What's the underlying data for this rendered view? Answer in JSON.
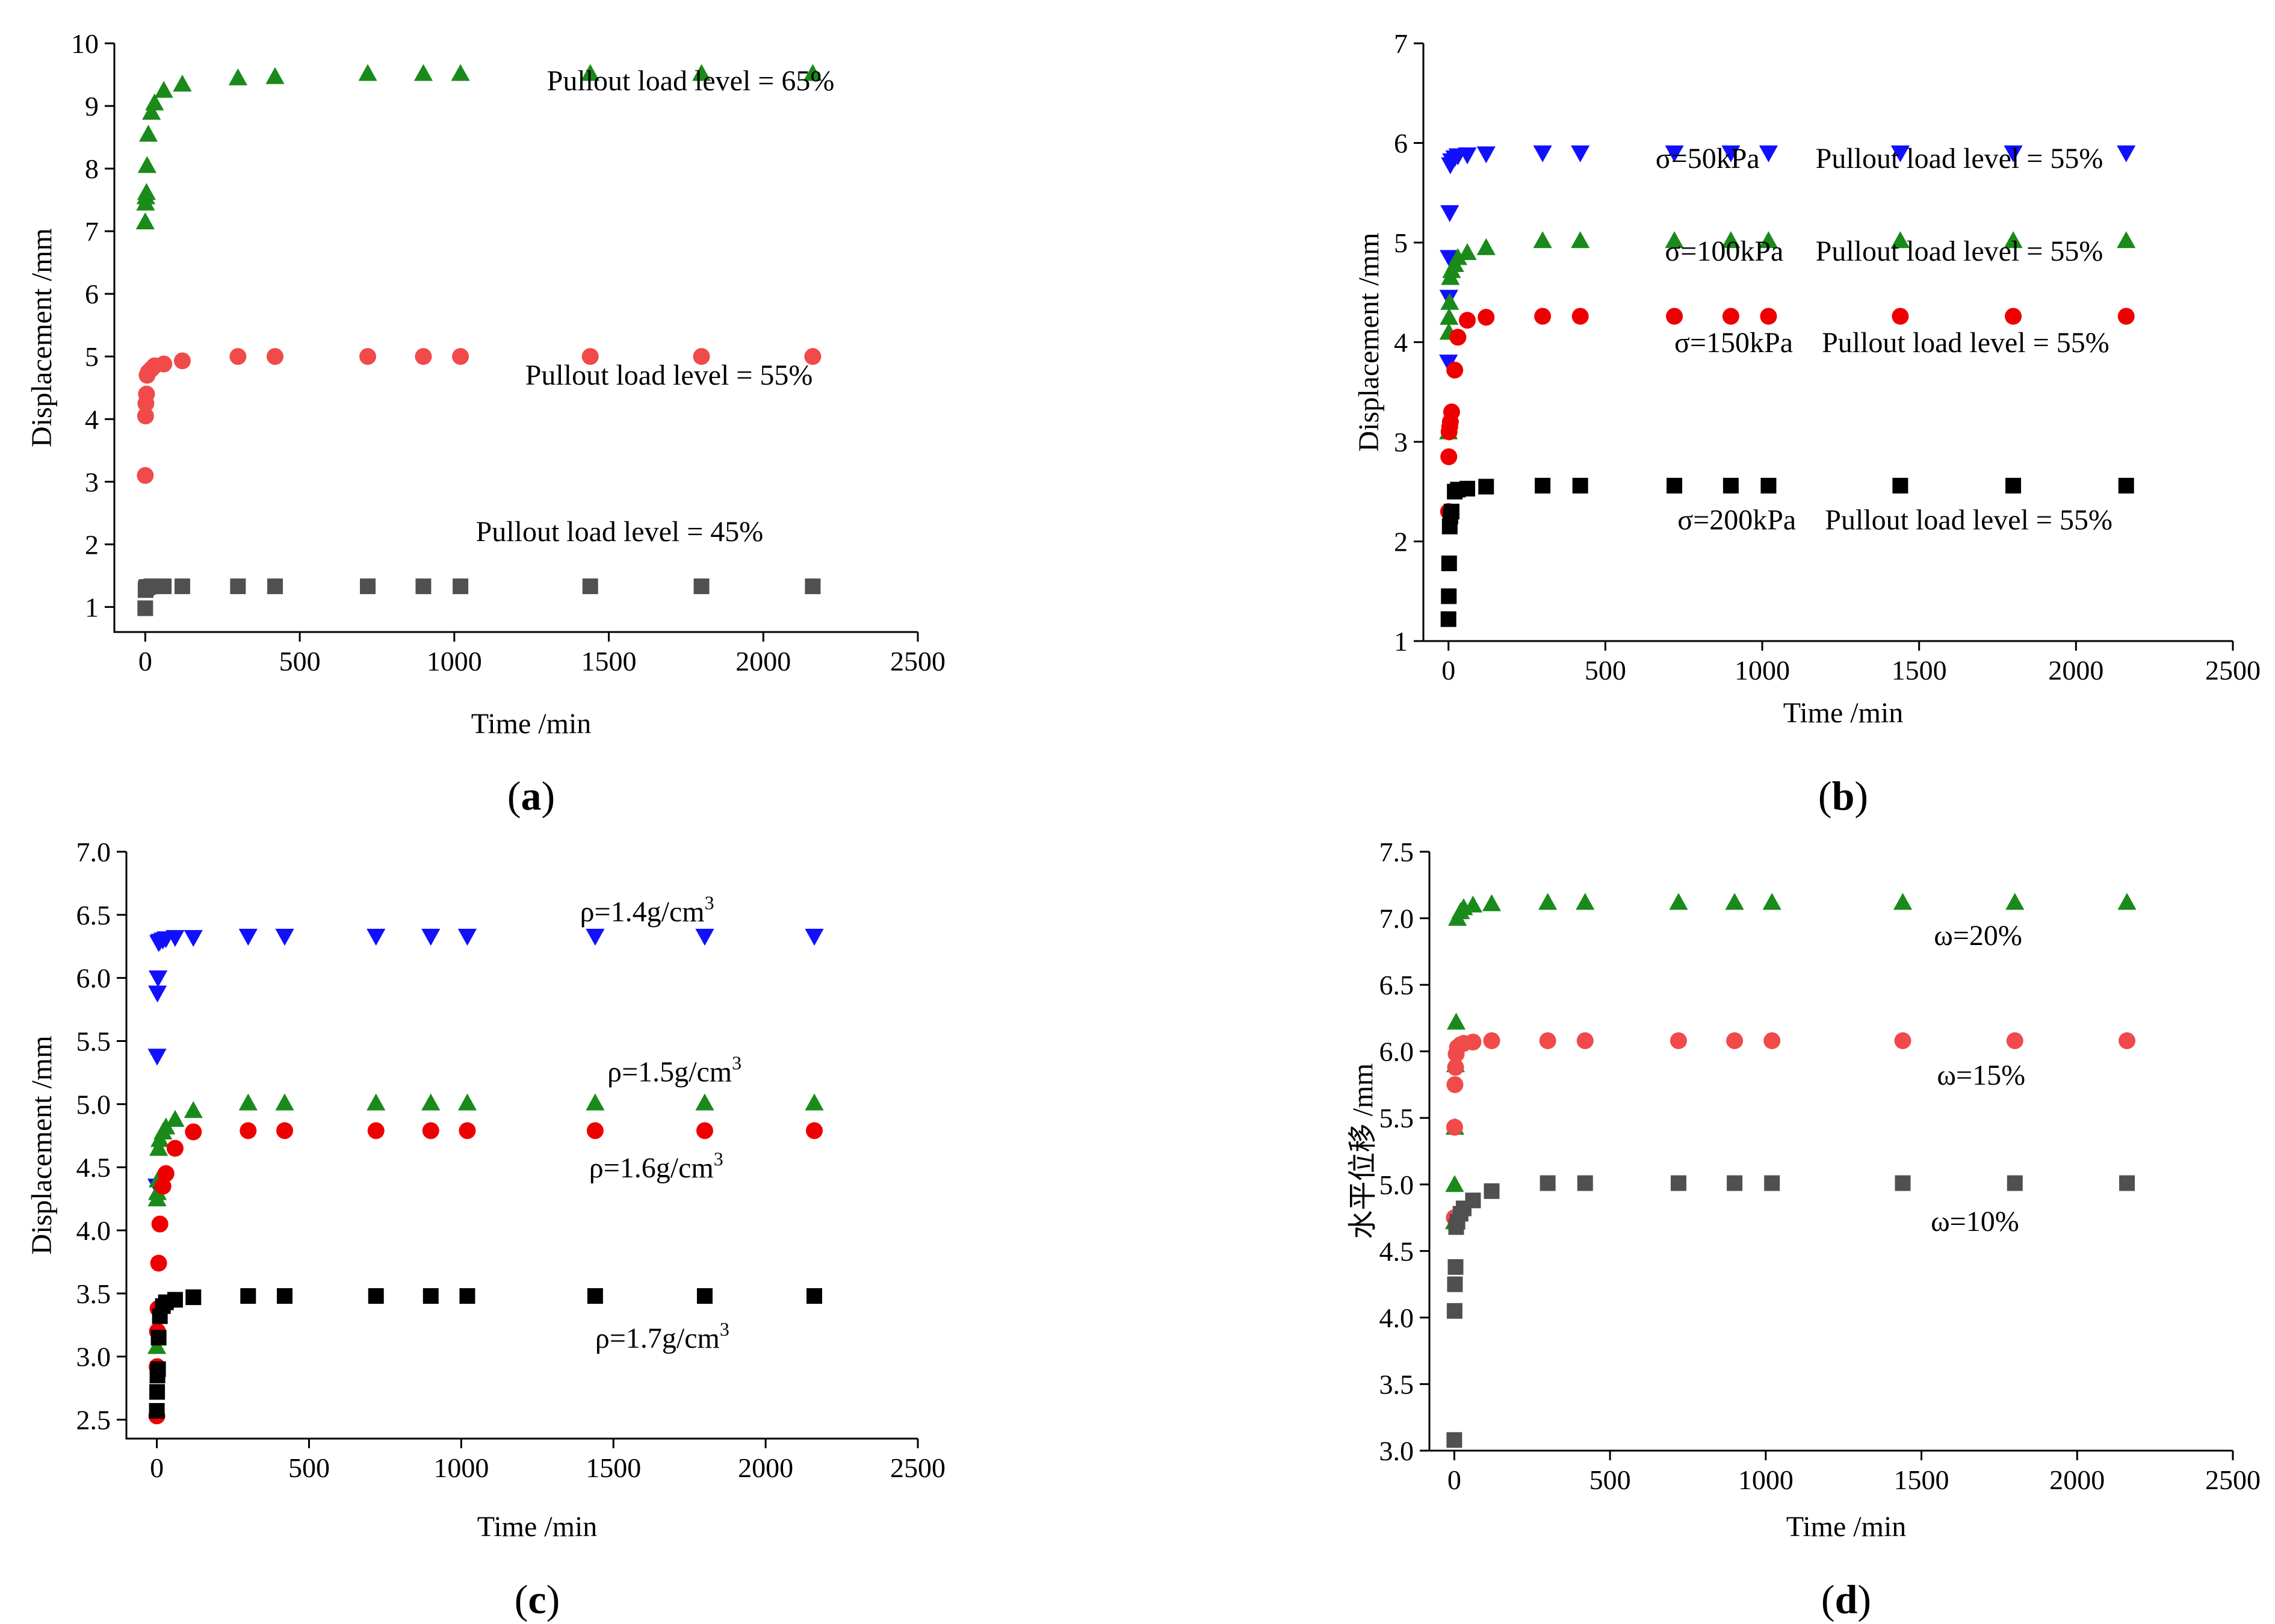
{
  "chart_data": [
    {
      "type": "scatter",
      "panel_label": "(a)",
      "xlabel": "Time /min",
      "ylabel": "Displacement /mm",
      "xlim": [
        -100,
        2500
      ],
      "ylim": [
        0.6,
        10
      ],
      "xticks": [
        0,
        500,
        1000,
        1500,
        2000,
        2500
      ],
      "yticks": [
        1,
        2,
        3,
        4,
        5,
        6,
        7,
        8,
        9,
        10
      ],
      "series": [
        {
          "name": "Pullout load level = 65%",
          "marker": "triangle-up",
          "color": "#1a8a1a",
          "x": [
            0,
            1,
            2,
            4,
            6,
            10,
            20,
            30,
            60,
            120,
            300,
            420,
            720,
            900,
            1020,
            1440,
            1800,
            2160
          ],
          "y": [
            7.15,
            7.45,
            7.55,
            7.62,
            8.05,
            8.55,
            8.9,
            9.05,
            9.25,
            9.35,
            9.45,
            9.47,
            9.52,
            9.52,
            9.52,
            9.52,
            9.52,
            9.52
          ]
        },
        {
          "name": "Pullout load level = 55%",
          "marker": "circle",
          "color": "#f04a4a",
          "x": [
            0,
            1,
            2,
            4,
            6,
            10,
            20,
            30,
            60,
            120,
            300,
            420,
            720,
            900,
            1020,
            1440,
            1800,
            2160
          ],
          "y": [
            3.1,
            4.05,
            4.25,
            4.4,
            4.7,
            4.75,
            4.8,
            4.85,
            4.88,
            4.93,
            5.0,
            5.0,
            5.0,
            5.0,
            5.0,
            5.0,
            5.0,
            5.0
          ]
        },
        {
          "name": "Pullout load level = 45%",
          "marker": "square",
          "color": "#505050",
          "x": [
            0,
            1,
            2,
            4,
            6,
            10,
            20,
            30,
            60,
            120,
            300,
            420,
            720,
            900,
            1020,
            1440,
            1800,
            2160
          ],
          "y": [
            0.98,
            1.27,
            1.3,
            1.31,
            1.32,
            1.32,
            1.33,
            1.33,
            1.33,
            1.33,
            1.33,
            1.33,
            1.33,
            1.33,
            1.33,
            1.33,
            1.33,
            1.33
          ]
        }
      ],
      "annotations": [
        {
          "text": "Pullout load level = 65%",
          "x": 2230,
          "y": 9.25,
          "anchor": "end"
        },
        {
          "text": "Pullout load level = 55%",
          "x": 2160,
          "y": 4.55,
          "anchor": "end"
        },
        {
          "text": "Pullout load level = 45%",
          "x": 2000,
          "y": 2.05,
          "anchor": "end"
        }
      ]
    },
    {
      "type": "scatter",
      "panel_label": "(b)",
      "xlabel": "Time /min",
      "ylabel": "Displacement /mm",
      "xlim": [
        -80,
        2500
      ],
      "ylim": [
        1,
        7
      ],
      "xticks": [
        0,
        500,
        1000,
        1500,
        2000,
        2500
      ],
      "yticks": [
        1,
        2,
        3,
        4,
        5,
        6,
        7
      ],
      "series": [
        {
          "name": "σ=50kPa",
          "marker": "triangle-down",
          "color": "#1010ff",
          "x": [
            0,
            1,
            2,
            4,
            6,
            10,
            20,
            30,
            60,
            120,
            300,
            420,
            720,
            900,
            1020,
            1440,
            1800,
            2160
          ],
          "y": [
            3.8,
            4.45,
            4.85,
            5.3,
            5.78,
            5.82,
            5.85,
            5.87,
            5.88,
            5.89,
            5.9,
            5.9,
            5.9,
            5.9,
            5.9,
            5.9,
            5.9,
            5.9
          ]
        },
        {
          "name": "σ=100kPa",
          "marker": "triangle-up",
          "color": "#1a8a1a",
          "x": [
            0,
            1,
            2,
            4,
            6,
            10,
            20,
            30,
            60,
            120,
            300,
            420,
            720,
            900,
            1020,
            1440,
            1800,
            2160
          ],
          "y": [
            3.1,
            4.1,
            4.25,
            4.4,
            4.65,
            4.72,
            4.78,
            4.85,
            4.9,
            4.95,
            5.02,
            5.02,
            5.02,
            5.02,
            5.02,
            5.02,
            5.02,
            5.02
          ]
        },
        {
          "name": "σ=150kPa",
          "marker": "circle",
          "color": "#ee0000",
          "x": [
            0,
            1,
            2,
            4,
            6,
            10,
            20,
            30,
            60,
            120,
            300,
            420,
            720,
            900,
            1020,
            1440,
            1800,
            2160
          ],
          "y": [
            2.3,
            2.85,
            3.1,
            3.15,
            3.2,
            3.3,
            3.72,
            4.05,
            4.22,
            4.25,
            4.26,
            4.26,
            4.26,
            4.26,
            4.26,
            4.26,
            4.26,
            4.26
          ]
        },
        {
          "name": "σ=200kPa",
          "marker": "square",
          "color": "#000000",
          "x": [
            0,
            1,
            2,
            4,
            6,
            10,
            20,
            30,
            60,
            120,
            300,
            420,
            720,
            900,
            1020,
            1440,
            1800,
            2160
          ],
          "y": [
            1.22,
            1.45,
            1.78,
            2.15,
            2.25,
            2.3,
            2.5,
            2.52,
            2.53,
            2.55,
            2.56,
            2.56,
            2.56,
            2.56,
            2.56,
            2.56,
            2.56,
            2.56
          ]
        }
      ],
      "annotations": [
        {
          "text": "σ=50kPa",
          "x": 660,
          "y": 5.75,
          "anchor": "start"
        },
        {
          "text": "Pullout load level = 55%",
          "x": 1170,
          "y": 5.75,
          "anchor": "start"
        },
        {
          "text": "σ=100kPa",
          "x": 690,
          "y": 4.82,
          "anchor": "start"
        },
        {
          "text": "Pullout load level = 55%",
          "x": 1170,
          "y": 4.82,
          "anchor": "start"
        },
        {
          "text": "σ=150kPa",
          "x": 720,
          "y": 3.9,
          "anchor": "start"
        },
        {
          "text": "Pullout load level = 55%",
          "x": 1190,
          "y": 3.9,
          "anchor": "start"
        },
        {
          "text": "σ=200kPa",
          "x": 730,
          "y": 2.12,
          "anchor": "start"
        },
        {
          "text": "Pullout load level = 55%",
          "x": 1200,
          "y": 2.12,
          "anchor": "start"
        }
      ]
    },
    {
      "type": "scatter",
      "panel_label": "(c)",
      "xlabel": "Time /min",
      "ylabel": "Displacement /mm",
      "xlim": [
        -100,
        2500
      ],
      "ylim": [
        2.35,
        7.0
      ],
      "xticks": [
        0,
        500,
        1000,
        1500,
        2000,
        2500
      ],
      "yticks": [
        2.5,
        3.0,
        3.5,
        4.0,
        4.5,
        5.0,
        5.5,
        6.0,
        6.5,
        7.0
      ],
      "series": [
        {
          "name": "ρ=1.4g/cm3",
          "marker": "triangle-down",
          "color": "#1010ff",
          "x": [
            0,
            1,
            2,
            4,
            6,
            10,
            20,
            30,
            60,
            120,
            300,
            420,
            720,
            900,
            1020,
            1440,
            1800,
            2160
          ],
          "y": [
            4.35,
            5.38,
            5.88,
            6.0,
            6.28,
            6.29,
            6.3,
            6.31,
            6.32,
            6.32,
            6.33,
            6.33,
            6.33,
            6.33,
            6.33,
            6.33,
            6.33,
            6.33
          ]
        },
        {
          "name": "ρ=1.5g/cm3",
          "marker": "triangle-up",
          "color": "#1a8a1a",
          "x": [
            0,
            1,
            2,
            4,
            6,
            10,
            20,
            30,
            60,
            120,
            300,
            420,
            720,
            900,
            1020,
            1440,
            1800,
            2160
          ],
          "y": [
            3.08,
            4.25,
            4.3,
            4.4,
            4.65,
            4.72,
            4.78,
            4.82,
            4.88,
            4.95,
            5.01,
            5.01,
            5.01,
            5.01,
            5.01,
            5.01,
            5.01,
            5.01
          ]
        },
        {
          "name": "ρ=1.6g/cm3",
          "marker": "circle",
          "color": "#ee0000",
          "x": [
            0,
            1,
            2,
            4,
            6,
            10,
            20,
            30,
            60,
            120,
            300,
            420,
            720,
            900,
            1020,
            1440,
            1800,
            2160
          ],
          "y": [
            2.53,
            2.92,
            3.2,
            3.38,
            3.74,
            4.05,
            4.35,
            4.45,
            4.65,
            4.78,
            4.79,
            4.79,
            4.79,
            4.79,
            4.79,
            4.79,
            4.79,
            4.79
          ]
        },
        {
          "name": "ρ=1.7g/cm3",
          "marker": "square",
          "color": "#000000",
          "x": [
            0,
            1,
            2,
            4,
            6,
            10,
            20,
            30,
            60,
            120,
            300,
            420,
            720,
            900,
            1020,
            1440,
            1800,
            2160
          ],
          "y": [
            2.57,
            2.72,
            2.85,
            2.9,
            3.15,
            3.32,
            3.4,
            3.43,
            3.45,
            3.47,
            3.48,
            3.48,
            3.48,
            3.48,
            3.48,
            3.48,
            3.48,
            3.48
          ]
        }
      ],
      "annotations": [
        {
          "text": "ρ=1.4g/cm",
          "sup": "3",
          "x": 1390,
          "y": 6.45,
          "anchor": "start"
        },
        {
          "text": "ρ=1.5g/cm",
          "sup": "3",
          "x": 1480,
          "y": 5.18,
          "anchor": "start"
        },
        {
          "text": "ρ=1.6g/cm",
          "sup": "3",
          "x": 1420,
          "y": 4.42,
          "anchor": "start"
        },
        {
          "text": "ρ=1.7g/cm",
          "sup": "3",
          "x": 1440,
          "y": 3.07,
          "anchor": "start"
        }
      ]
    },
    {
      "type": "scatter",
      "panel_label": "(d)",
      "xlabel": "Time /min",
      "ylabel": "水平位移 /mm",
      "xlim": [
        -80,
        2500
      ],
      "ylim": [
        3.0,
        7.5
      ],
      "xticks": [
        0,
        500,
        1000,
        1500,
        2000,
        2500
      ],
      "yticks": [
        3.0,
        3.5,
        4.0,
        4.5,
        5.0,
        5.5,
        6.0,
        6.5,
        7.0,
        7.5
      ],
      "series": [
        {
          "name": "ω=20%",
          "marker": "triangle-up",
          "color": "#1a8a1a",
          "x": [
            0,
            1,
            2,
            4,
            6,
            10,
            20,
            30,
            60,
            120,
            300,
            420,
            720,
            900,
            1020,
            1440,
            1800,
            2160
          ],
          "y": [
            4.72,
            5.0,
            5.43,
            5.9,
            6.22,
            7.0,
            7.05,
            7.08,
            7.1,
            7.11,
            7.12,
            7.12,
            7.12,
            7.12,
            7.12,
            7.12,
            7.12,
            7.12
          ]
        },
        {
          "name": "ω=15%",
          "marker": "circle",
          "color": "#f04a4a",
          "x": [
            0,
            1,
            2,
            4,
            6,
            10,
            20,
            30,
            60,
            120,
            300,
            420,
            720,
            900,
            1020,
            1440,
            1800,
            2160
          ],
          "y": [
            4.75,
            5.43,
            5.75,
            5.88,
            5.98,
            6.03,
            6.05,
            6.06,
            6.07,
            6.08,
            6.08,
            6.08,
            6.08,
            6.08,
            6.08,
            6.08,
            6.08,
            6.08
          ]
        },
        {
          "name": "ω=10%",
          "marker": "square",
          "color": "#505050",
          "x": [
            0,
            1,
            2,
            4,
            6,
            10,
            20,
            30,
            60,
            120,
            300,
            420,
            720,
            900,
            1020,
            1440,
            1800,
            2160
          ],
          "y": [
            3.08,
            4.05,
            4.25,
            4.38,
            4.68,
            4.72,
            4.78,
            4.82,
            4.88,
            4.95,
            5.01,
            5.01,
            5.01,
            5.01,
            5.01,
            5.01,
            5.01,
            5.01
          ]
        }
      ],
      "annotations": [
        {
          "text": "ω=20%",
          "x": 1540,
          "y": 6.8,
          "anchor": "start"
        },
        {
          "text": "ω=15%",
          "x": 1550,
          "y": 5.75,
          "anchor": "start"
        },
        {
          "text": "ω=10%",
          "x": 1530,
          "y": 4.65,
          "anchor": "start"
        }
      ]
    }
  ]
}
